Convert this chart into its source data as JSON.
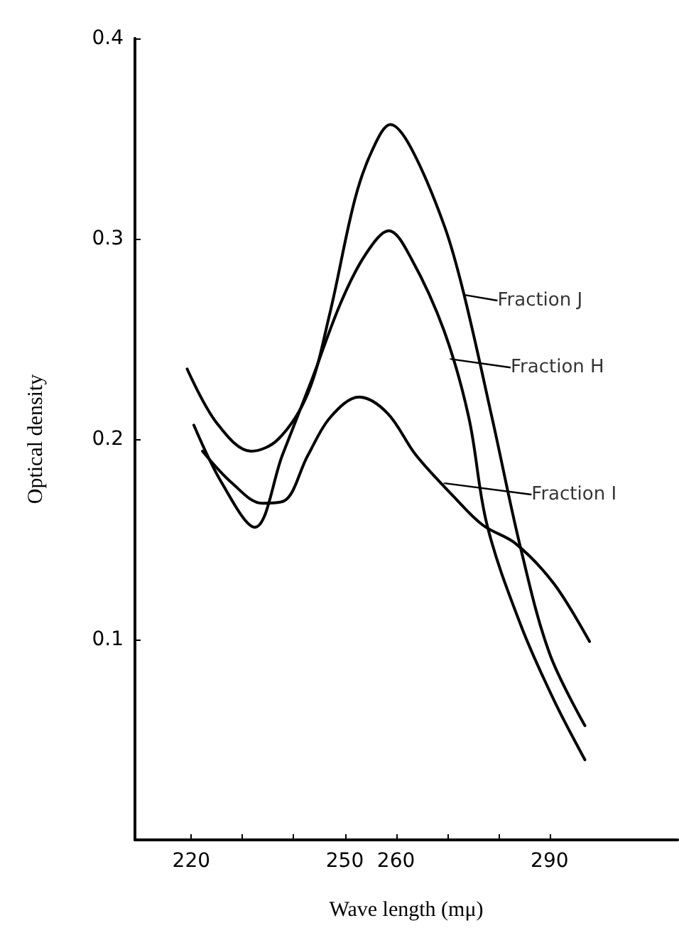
{
  "chart_data": {
    "type": "line",
    "xlabel": "Wave length (mμ)",
    "ylabel": "Optical density",
    "xlim": [
      209,
      315
    ],
    "ylim": [
      0,
      0.4
    ],
    "xticks": [
      220,
      {
        "value": 230,
        "label": null
      },
      {
        "value": 240,
        "label": null
      },
      250,
      260,
      {
        "value": 270,
        "label": null
      },
      {
        "value": 280,
        "label": null
      },
      290
    ],
    "yticks": [
      0.1,
      0.2,
      0.3,
      0.4
    ],
    "grid": false,
    "marker": "none",
    "line_style": "solid",
    "series": [
      {
        "color": "#000000",
        "x": [
          219.2,
          225,
          231.7,
          237,
          242.8,
          247,
          252,
          255.5,
          258.9,
          263,
          269.5,
          273.3,
          278.9,
          284.4,
          290,
          296.9
        ],
        "values": [
          0.235,
          0.208,
          0.194,
          0.2,
          0.223,
          0.262,
          0.32,
          0.345,
          0.357,
          0.345,
          0.306,
          0.272,
          0.209,
          0.145,
          0.093,
          0.057
        ]
      },
      {
        "color": "#000000",
        "x": [
          220.5,
          226,
          232.4,
          237.8,
          243.6,
          249.2,
          254,
          258.6,
          263,
          269.4,
          274.2,
          277.8,
          284.4,
          290.8,
          296.9
        ],
        "values": [
          0.207,
          0.178,
          0.156,
          0.192,
          0.23,
          0.268,
          0.292,
          0.304,
          0.29,
          0.254,
          0.211,
          0.157,
          0.107,
          0.07,
          0.04
        ]
      },
      {
        "color": "#000000",
        "x": [
          222.2,
          228,
          233.9,
          238,
          242.8,
          247.2,
          252.8,
          258.3,
          263.9,
          271.4,
          277,
          283.3,
          290.8,
          297.8
        ],
        "values": [
          0.194,
          0.178,
          0.168,
          0.169,
          0.192,
          0.211,
          0.221,
          0.213,
          0.192,
          0.171,
          0.157,
          0.148,
          0.128,
          0.099
        ]
      }
    ],
    "annotations": [
      {
        "text": "Fraction J",
        "x": 273.3,
        "y": 0.272
      },
      {
        "text": "Fraction H",
        "x": 270.6,
        "y": 0.24
      },
      {
        "text": "Fraction I",
        "x": 269.4,
        "y": 0.178
      }
    ]
  }
}
